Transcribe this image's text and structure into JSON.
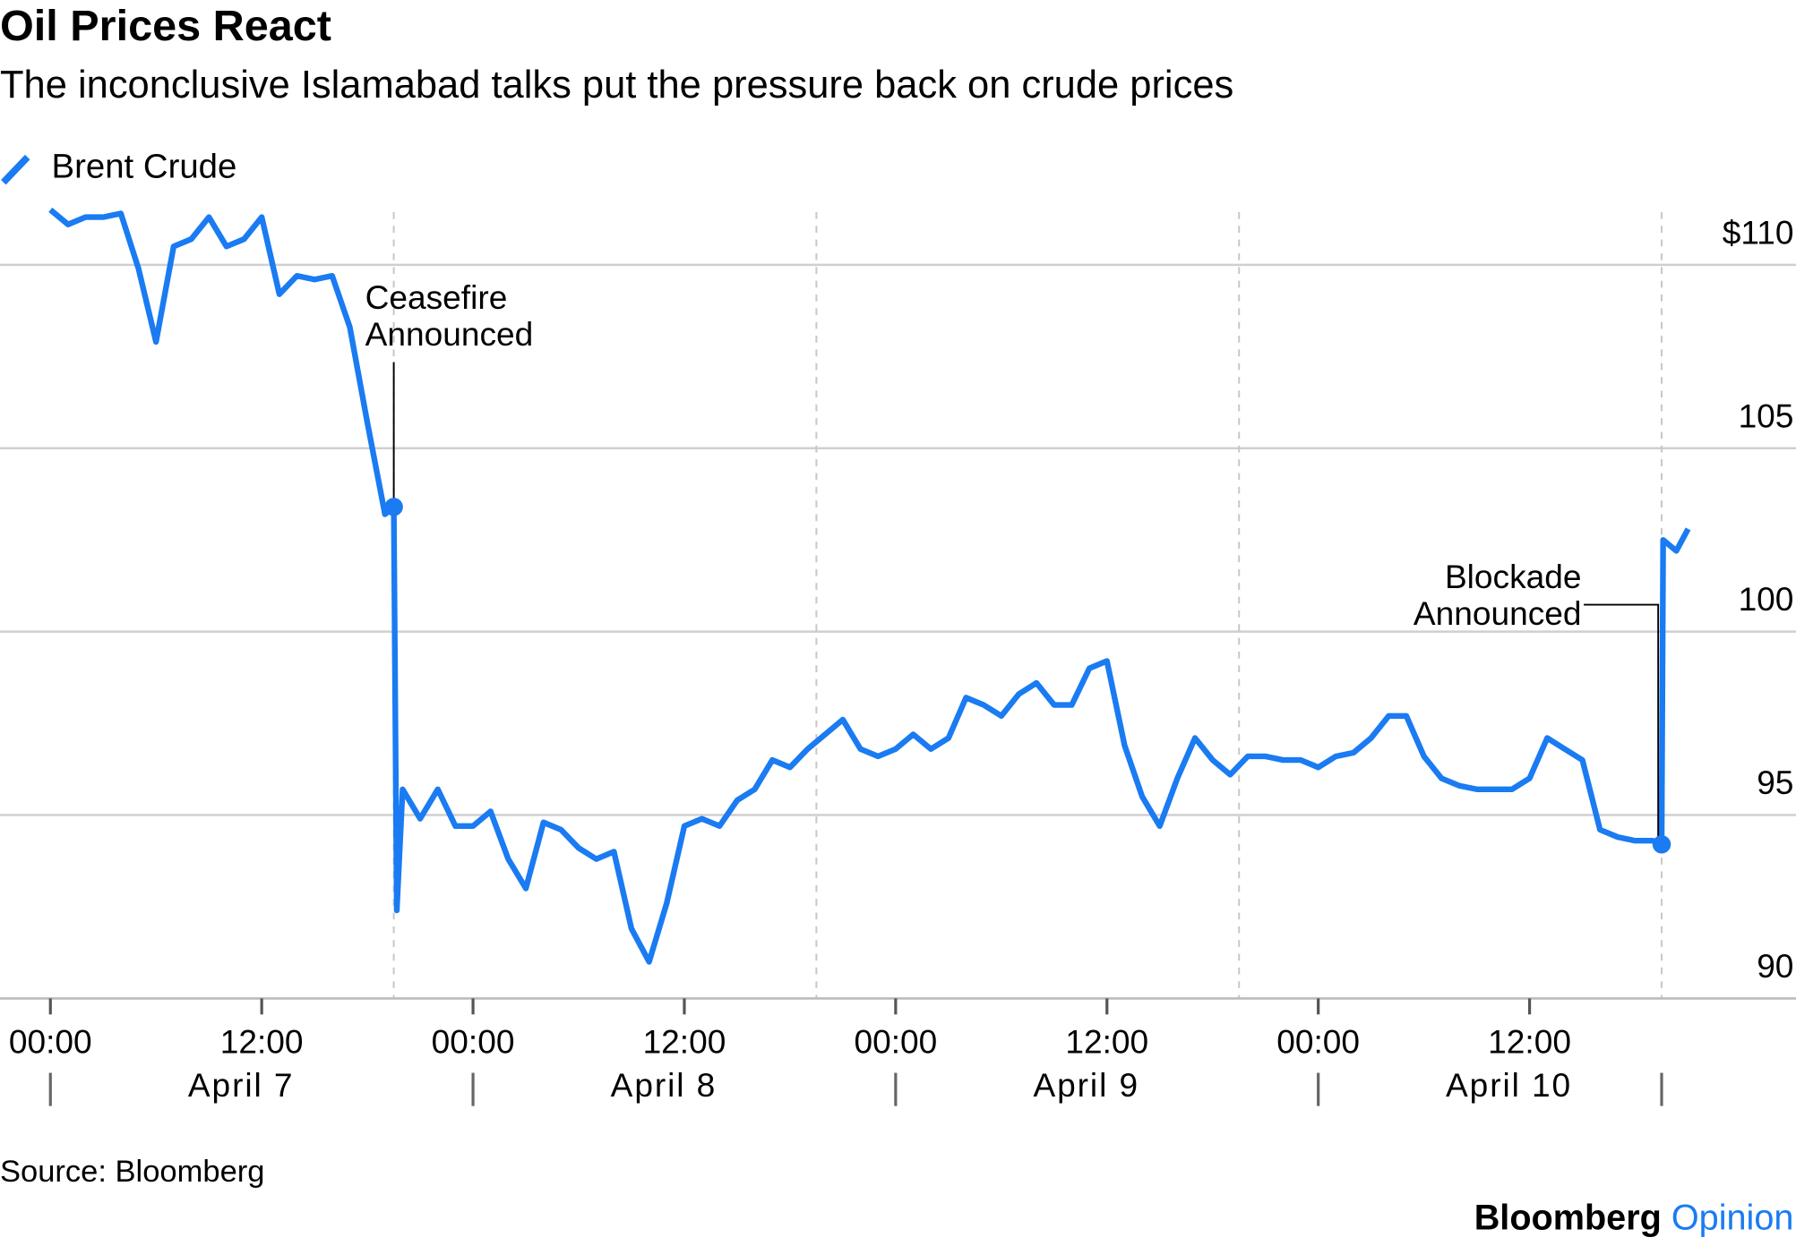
{
  "chart_data": {
    "type": "line",
    "title": "Oil Prices React",
    "subtitle": "The inconclusive Islamabad talks put the pressure back on crude prices",
    "source": "Source: Bloomberg",
    "brand": [
      "Bloomberg",
      "Opinion"
    ],
    "series": [
      {
        "name": "Brent Crude",
        "color": "#1a7bf2",
        "x": [
          "April 7 00:00",
          "April 7 01:00",
          "April 7 02:00",
          "April 7 03:00",
          "April 7 04:00",
          "April 7 05:00",
          "April 7 06:00",
          "April 7 07:00",
          "April 7 08:00",
          "April 7 09:00",
          "April 7 10:00",
          "April 7 11:00",
          "April 7 12:00",
          "April 7 13:00",
          "April 7 14:00",
          "April 7 15:00",
          "April 7 16:00",
          "April 7 17:00",
          "April 7 18:00",
          "April 7 19:00",
          "April 7 19:30",
          "April 7 19:40",
          "April 7 20:00",
          "April 7 21:00",
          "April 7 22:00",
          "April 7 23:00",
          "April 8 00:00",
          "April 8 01:00",
          "April 8 02:00",
          "April 8 03:00",
          "April 8 04:00",
          "April 8 05:00",
          "April 8 06:00",
          "April 8 07:00",
          "April 8 08:00",
          "April 8 09:00",
          "April 8 10:00",
          "April 8 11:00",
          "April 8 12:00",
          "April 8 13:00",
          "April 8 14:00",
          "April 8 15:00",
          "April 8 16:00",
          "April 8 17:00",
          "April 8 18:00",
          "April 8 19:00",
          "April 8 20:00",
          "April 8 21:00",
          "April 8 22:00",
          "April 8 23:00",
          "April 9 00:00",
          "April 9 01:00",
          "April 9 02:00",
          "April 9 03:00",
          "April 9 04:00",
          "April 9 05:00",
          "April 9 06:00",
          "April 9 07:00",
          "April 9 08:00",
          "April 9 09:00",
          "April 9 10:00",
          "April 9 11:00",
          "April 9 12:00",
          "April 9 13:00",
          "April 9 14:00",
          "April 9 15:00",
          "April 9 16:00",
          "April 9 17:00",
          "April 9 18:00",
          "April 9 19:00",
          "April 9 20:00",
          "April 9 21:00",
          "April 9 22:00",
          "April 9 23:00",
          "April 10 00:00",
          "April 10 01:00",
          "April 10 02:00",
          "April 10 03:00",
          "April 10 04:00",
          "April 10 05:00",
          "April 10 06:00",
          "April 10 07:00",
          "April 10 08:00",
          "April 10 09:00",
          "April 10 10:00",
          "April 10 11:00",
          "April 10 12:00",
          "April 10 13:00",
          "April 10 14:00",
          "April 10 15:00",
          "April 10 16:00",
          "April 10 17:00",
          "April 10 18:00",
          "April 10 19:00",
          "April 10 19:30",
          "April 10 19:35",
          "April 10 20:20",
          "April 10 21:00"
        ],
        "values": [
          111.5,
          111.1,
          111.3,
          111.3,
          111.4,
          109.9,
          107.9,
          110.5,
          110.7,
          111.3,
          110.5,
          110.7,
          111.3,
          109.2,
          109.7,
          109.6,
          109.7,
          108.3,
          105.7,
          103.2,
          103.4,
          92.4,
          95.7,
          94.9,
          95.7,
          94.7,
          94.7,
          95.1,
          93.8,
          93.0,
          94.8,
          94.6,
          94.1,
          93.8,
          94.0,
          91.9,
          91.0,
          92.6,
          94.7,
          94.9,
          94.7,
          95.4,
          95.7,
          96.5,
          96.3,
          96.8,
          97.2,
          97.6,
          96.8,
          96.6,
          96.8,
          97.2,
          96.8,
          97.1,
          98.2,
          98.0,
          97.7,
          98.3,
          98.6,
          98.0,
          98.0,
          99.0,
          99.2,
          96.9,
          95.5,
          94.7,
          96.0,
          97.1,
          96.5,
          96.1,
          96.6,
          96.6,
          96.5,
          96.5,
          96.3,
          96.6,
          96.7,
          97.1,
          97.7,
          97.7,
          96.6,
          96.0,
          95.8,
          95.7,
          95.7,
          95.7,
          96.0,
          97.1,
          96.8,
          96.5,
          94.6,
          94.4,
          94.3,
          94.3,
          94.2,
          102.5,
          102.2,
          102.8
        ]
      }
    ],
    "xlim": [
      "April 7 00:00",
      "April 11 03:00"
    ],
    "xticks": [
      {
        "value": "April 7 00:00",
        "label": "00:00"
      },
      {
        "value": "April 7 12:00",
        "label": "12:00"
      },
      {
        "value": "April 8 00:00",
        "label": "00:00"
      },
      {
        "value": "April 8 12:00",
        "label": "12:00"
      },
      {
        "value": "April 9 00:00",
        "label": "00:00"
      },
      {
        "value": "April 9 12:00",
        "label": "12:00"
      },
      {
        "value": "April 10 00:00",
        "label": "00:00"
      },
      {
        "value": "April 10 12:00",
        "label": "12:00"
      }
    ],
    "day_labels": [
      {
        "value": "April 7 12:00",
        "label": "April 7"
      },
      {
        "value": "April 8 12:00",
        "label": "April 8"
      },
      {
        "value": "April 9 12:00",
        "label": "April 9"
      },
      {
        "value": "April 10 12:00",
        "label": "April 10"
      }
    ],
    "session_lines": [
      "April 7 19:30",
      "April 8 19:30",
      "April 9 19:30",
      "April 10 19:30"
    ],
    "ylim": [
      90,
      111.5
    ],
    "yticks": [
      90,
      95,
      100,
      105,
      {
        "value": 110,
        "label": "$110"
      }
    ],
    "grid": true,
    "annotations": [
      {
        "x": "April 7 19:30",
        "y": 103.4,
        "lines": [
          "Ceasefire",
          "Announced"
        ],
        "side": "right"
      },
      {
        "x": "April 10 19:30",
        "y": 94.2,
        "lines": [
          "Blockade",
          "Announced"
        ],
        "side": "left"
      }
    ]
  }
}
